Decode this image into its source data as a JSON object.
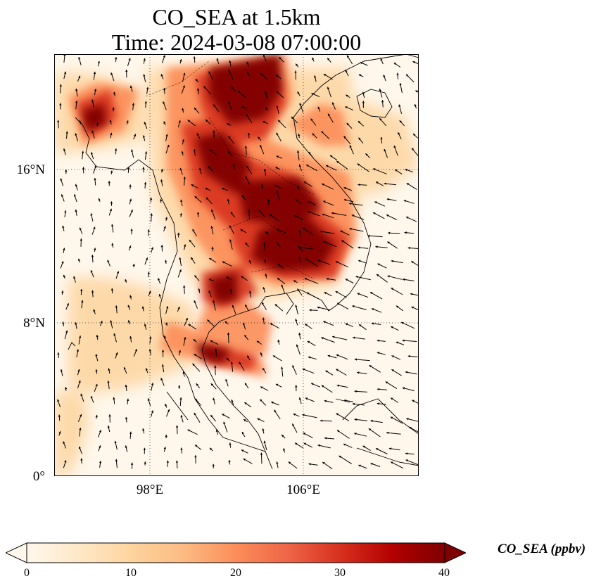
{
  "title": {
    "line1": "CO_SEA at 1.5km",
    "line2": "Time: 2024-03-08 07:00:00"
  },
  "map": {
    "lon_range": [
      91.8,
      115.5
    ],
    "lat_range": [
      0,
      22
    ],
    "lat_ticks": [
      {
        "value": 16,
        "label": "16°N"
      },
      {
        "value": 8,
        "label": "8°N"
      },
      {
        "value": 0,
        "label": "0°"
      }
    ],
    "lon_ticks": [
      {
        "value": 98,
        "label": "98°E"
      },
      {
        "value": 106,
        "label": "106°E"
      }
    ],
    "gridlines": "dotted",
    "field": "CO_SEA",
    "overlay": "wind vectors (black arrows)",
    "colormap": "OrRd"
  },
  "colorbar": {
    "label": "CO_SEA (ppbv)",
    "min": 0,
    "max": 40,
    "ticks": [
      "0",
      "10",
      "20",
      "30",
      "40"
    ],
    "extend": "both",
    "colors": [
      "#fff7ec",
      "#fee8c8",
      "#fdd49e",
      "#fdbb84",
      "#fc8d59",
      "#ef6548",
      "#d7301f",
      "#b30000",
      "#7f0000"
    ]
  }
}
